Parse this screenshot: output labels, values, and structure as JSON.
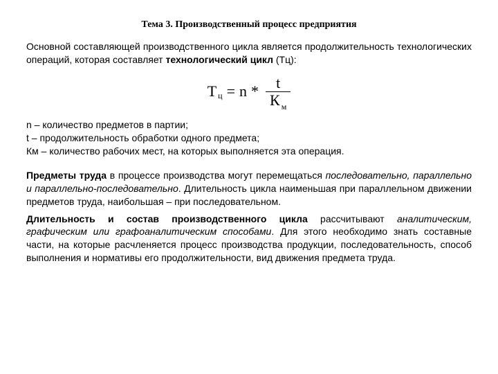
{
  "title": "Тема 3. Производственный процесс предприятия",
  "intro": {
    "part1": "Основной составляющей производственного цикла является продолжительность технологических операций, которая составляет ",
    "bold": "технологический цикл",
    "part2": " (Тц):"
  },
  "formula": {
    "lhs_base": "Т",
    "lhs_sub": "ц",
    "equals": "=",
    "n": "n",
    "star": "*",
    "num": "t",
    "den_base": "К",
    "den_sub": "м"
  },
  "defs": {
    "d1": "n – количество предметов в партии;",
    "d2": "t – продолжительность обработки одного предмета;",
    "d3": "Км – количество рабочих мест, на которых выполняется эта операция."
  },
  "p2": {
    "bold1": "Предметы труда",
    "plain1": " в процессе производства могут перемещаться ",
    "italic1": "последовательно, параллельно и параллельно-последовательно",
    "plain2": ". Длительность цикла наименьшая при параллельном движении предметов труда, наибольшая – при последовательном."
  },
  "p3": {
    "bold1": "Длительность и состав производственного цикла",
    "plain1": " рассчитывают ",
    "italic1": "аналитическим, графическим или графоаналитическим способами",
    "plain2": ". Для этого необходимо знать составные части, на которые расчленяется процесс производства продукции, последовательность, способ выполнения и нормативы его продолжительности, вид движения предмета труда."
  }
}
